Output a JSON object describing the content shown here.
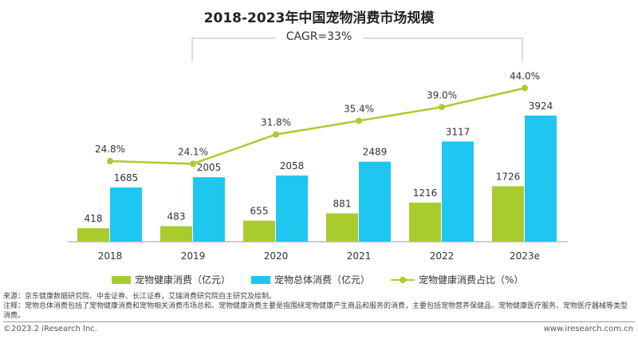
{
  "chart_data": {
    "type": "bar+line",
    "title": "2018-2023年中国宠物消费市场规模",
    "annotation": "CAGR=33%",
    "categories": [
      "2018",
      "2019",
      "2020",
      "2021",
      "2022",
      "2023e"
    ],
    "series": [
      {
        "name": "宠物健康消费（亿元）",
        "type": "bar",
        "color": "#a8cc2e",
        "values": [
          418,
          483,
          655,
          881,
          1216,
          1726
        ]
      },
      {
        "name": "宠物总体消费（亿元）",
        "type": "bar",
        "color": "#1ec6f0",
        "values": [
          1685,
          2005,
          2058,
          2489,
          3117,
          3924
        ]
      },
      {
        "name": "宠物健康消费占比（%）",
        "type": "line",
        "color": "#a8cc2e",
        "values": [
          24.8,
          24.1,
          31.8,
          35.4,
          39.0,
          44.0
        ],
        "labels": [
          "24.8%",
          "24.1%",
          "31.8%",
          "35.4%",
          "39.0%",
          "44.0%"
        ]
      }
    ],
    "legend": "bottom",
    "grid": false
  },
  "footer": {
    "source": "来源：京东健康数据研究院、中金证券、长江证券，艾瑞消费研究院自主研究及绘制。",
    "note": "注释：宠物总体消费包括了宠物健康消费和宠物相关消费市场总和。宠物健康消费主要是指围绕宠物健康产生商品和服务的消费，主要包括宠物营养保健品、宠物健康医疗服务、宠物医疗器械等类型消费。",
    "copyright": "©2023.2 iResearch Inc.",
    "website": "www.iresearch.com.cn"
  }
}
